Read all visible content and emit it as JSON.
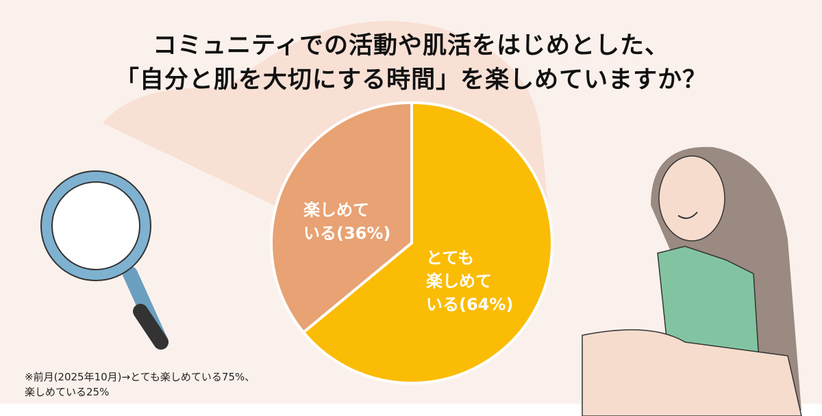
{
  "title": {
    "line1": "コミュニティでの活動や肌活をはじめとした、",
    "line2": "「自分と肌を大切にする時間」を楽しめていますか？"
  },
  "chart_data": {
    "type": "pie",
    "title": "コミュニティでの活動や肌活をはじめとした、「自分と肌を大切にする時間」を楽しめていますか？",
    "slices": [
      {
        "label_line1": "とても",
        "label_line2": "楽しめて",
        "label_line3": "いる(64%)",
        "name": "とても楽しめている",
        "value": 64,
        "color": "#fbbc05"
      },
      {
        "label_line1": "楽しめて",
        "label_line2": "いる(36%)",
        "name": "楽しめている",
        "value": 36,
        "color": "#e8a273"
      }
    ],
    "start": "top",
    "direction": "clockwise"
  },
  "note": {
    "line1": "※前月(2025年10月)→とても楽しめている75%、",
    "line2": "楽しめている25%"
  }
}
